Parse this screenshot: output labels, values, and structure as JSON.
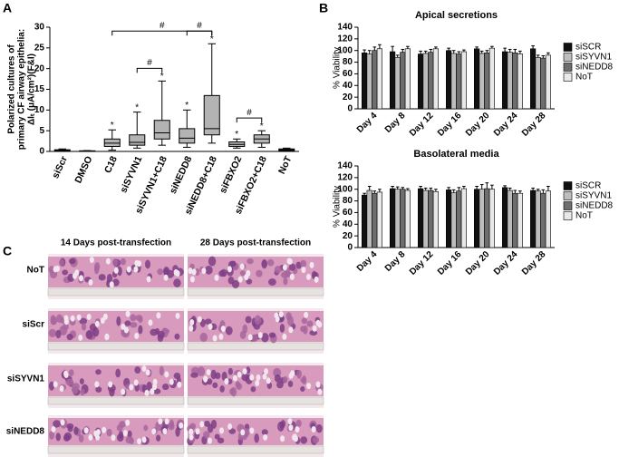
{
  "panel_labels": [
    "A",
    "B",
    "C"
  ],
  "chart_data": [
    {
      "type": "box",
      "ylabel": [
        "Polarized cultures of",
        "primary CF airway epithelia:",
        "ΔIₜ (μA/cm²)(F&I)"
      ],
      "categories": [
        "siScr",
        "DMSO",
        "C18",
        "siSYVN1",
        "siSYVN1+C18",
        "siNEDD8",
        "siNEDD8+C18",
        "siFBXO2",
        "siFBXO2+C18",
        "NoT"
      ],
      "values": [
        {
          "min": 0.1,
          "q1": 0.2,
          "median": 0.3,
          "q3": 0.4,
          "max": 0.6
        },
        {
          "min": 0,
          "q1": 0.05,
          "median": 0.1,
          "q3": 0.15,
          "max": 0.2
        },
        {
          "min": 0.3,
          "q1": 1.2,
          "median": 2,
          "q3": 3,
          "max": 5.2
        },
        {
          "min": 0.8,
          "q1": 1.5,
          "median": 2.2,
          "q3": 4,
          "max": 9.5
        },
        {
          "min": 1.5,
          "q1": 3,
          "median": 4.5,
          "q3": 7.5,
          "max": 17
        },
        {
          "min": 1,
          "q1": 2,
          "median": 3.2,
          "q3": 5.5,
          "max": 10
        },
        {
          "min": 2,
          "q1": 4,
          "median": 5.5,
          "q3": 13.5,
          "max": 26
        },
        {
          "min": 0.8,
          "q1": 1.2,
          "median": 1.7,
          "q3": 2.3,
          "max": 3
        },
        {
          "min": 1,
          "q1": 2,
          "median": 3,
          "q3": 4,
          "max": 5
        },
        {
          "min": 0.1,
          "q1": 0.2,
          "median": 0.4,
          "q3": 0.6,
          "max": 0.8
        }
      ],
      "stars": [
        null,
        null,
        "*",
        "*",
        "*",
        "*",
        "*",
        "*",
        "*",
        null
      ],
      "brackets": [
        {
          "label": "#",
          "from": "C18",
          "to": "siNEDD8+C18"
        },
        {
          "label": "#",
          "from": "siSYVN1",
          "to": "siSYVN1+C18"
        },
        {
          "label": "#",
          "from": "siNEDD8",
          "to": "siNEDD8+C18"
        },
        {
          "label": "#",
          "from": "siFBXO2",
          "to": "siFBXO2+C18"
        }
      ],
      "color": "#b3b3b3",
      "ylim": [
        0,
        30
      ],
      "yticks": [
        0,
        5,
        10,
        15,
        20,
        25,
        30
      ]
    },
    {
      "type": "bar",
      "title": "Apical secretions",
      "ylabel": "% Viability",
      "categories": [
        "Day 4",
        "Day 8",
        "Day 12",
        "Day 16",
        "Day 20",
        "Day 24",
        "Day 28"
      ],
      "series": [
        {
          "name": "siSCR",
          "color": "#111111",
          "values": [
            96,
            98,
            94,
            100,
            103,
            98,
            103
          ],
          "errors": [
            5,
            9,
            5,
            4,
            3,
            6,
            5
          ]
        },
        {
          "name": "siSYVN1",
          "color": "#bdbdbd",
          "values": [
            94,
            88,
            95,
            95,
            95,
            97,
            88
          ],
          "errors": [
            6,
            4,
            4,
            5,
            4,
            5,
            4
          ]
        },
        {
          "name": "siNEDD8",
          "color": "#6e6e6e",
          "values": [
            100,
            97,
            97,
            94,
            96,
            96,
            87
          ],
          "errors": [
            6,
            5,
            5,
            4,
            4,
            6,
            4
          ]
        },
        {
          "name": "NoT",
          "color": "#e8e8e8",
          "values": [
            103,
            103,
            103,
            98,
            104,
            94,
            92
          ],
          "errors": [
            7,
            4,
            3,
            3,
            3,
            5,
            4
          ]
        }
      ],
      "ylim": [
        0,
        140
      ],
      "yticks": [
        0,
        20,
        40,
        60,
        80,
        100,
        120,
        140
      ],
      "legend": "right"
    },
    {
      "type": "bar",
      "title": "Basolateral media",
      "ylabel": "% Viability",
      "categories": [
        "Day 4",
        "Day 8",
        "Day 12",
        "Day 16",
        "Day 20",
        "Day 24",
        "Day 28"
      ],
      "series": [
        {
          "name": "siSCR",
          "color": "#111111",
          "values": [
            90,
            101,
            101,
            99,
            100,
            103,
            98
          ],
          "errors": [
            3,
            4,
            4,
            4,
            5,
            3,
            4
          ]
        },
        {
          "name": "siSYVN1",
          "color": "#bdbdbd",
          "values": [
            98,
            100,
            98,
            94,
            100,
            98,
            97
          ],
          "errors": [
            7,
            4,
            4,
            5,
            8,
            4,
            3
          ]
        },
        {
          "name": "siNEDD8",
          "color": "#6e6e6e",
          "values": [
            93,
            100,
            98,
            97,
            101,
            93,
            93
          ],
          "errors": [
            4,
            3,
            4,
            6,
            10,
            5,
            6
          ]
        },
        {
          "name": "NoT",
          "color": "#e8e8e8",
          "values": [
            95,
            98,
            96,
            101,
            100,
            93,
            97
          ],
          "errors": [
            5,
            3,
            4,
            4,
            7,
            4,
            8
          ]
        }
      ],
      "ylim": [
        0,
        140
      ],
      "yticks": [
        0,
        20,
        40,
        60,
        80,
        100,
        120,
        140
      ],
      "legend": "right"
    }
  ],
  "micrographs": {
    "columns": [
      "14 Days post-transfection",
      "28 Days post-transfection"
    ],
    "rows": [
      "NoT",
      "siScr",
      "siSYVN1",
      "siNEDD8"
    ]
  }
}
